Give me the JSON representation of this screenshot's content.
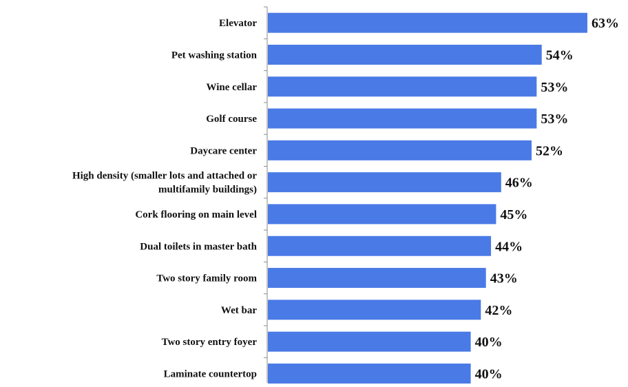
{
  "chart_data": {
    "type": "bar",
    "orientation": "horizontal",
    "title": "",
    "xlabel": "",
    "ylabel": "",
    "xlim": [
      0,
      63
    ],
    "grid": false,
    "legend": "none",
    "bar_color": "#4a7ae6",
    "axis_color": "#8a8a8a",
    "value_suffix": "%",
    "categories": [
      [
        "Elevator"
      ],
      [
        "Pet washing station"
      ],
      [
        "Wine cellar"
      ],
      [
        "Golf course"
      ],
      [
        "Daycare center"
      ],
      [
        "High density (smaller lots and attached or",
        "multifamily buildings)"
      ],
      [
        "Cork flooring on main level"
      ],
      [
        "Dual toilets in master bath"
      ],
      [
        "Two story family room"
      ],
      [
        "Wet bar"
      ],
      [
        "Two story entry foyer"
      ],
      [
        "Laminate countertop"
      ]
    ],
    "values": [
      63,
      54,
      53,
      53,
      52,
      46,
      45,
      44,
      43,
      42,
      40,
      40
    ],
    "value_labels": [
      "63%",
      "54%",
      "53%",
      "53%",
      "52%",
      "46%",
      "45%",
      "44%",
      "43%",
      "42%",
      "40%",
      "40%"
    ]
  }
}
